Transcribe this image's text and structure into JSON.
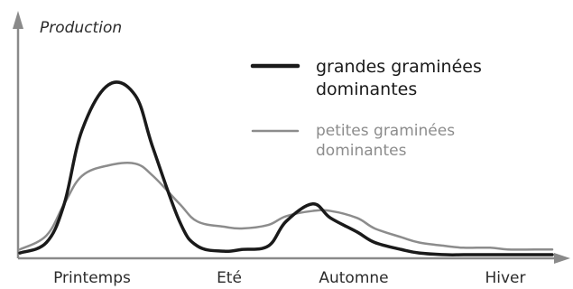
{
  "chart_data": {
    "type": "line",
    "ylabel": "Production",
    "xlabel": "",
    "categories": [
      "Printemps",
      "Eté",
      "Automne",
      "Hiver"
    ],
    "x": [
      0,
      0.6,
      1.0,
      1.4,
      2.0,
      2.6,
      3.0,
      3.6,
      4.0,
      4.6,
      5.0,
      5.6,
      6.0,
      6.6,
      7.0,
      7.6,
      8.0,
      8.6,
      9.0,
      9.6,
      10.0,
      10.6,
      11.0,
      11.6,
      12.0
    ],
    "xlim": [
      0,
      12
    ],
    "ylim": [
      0,
      100
    ],
    "series": [
      {
        "name": "grandes graminées dominantes",
        "color": "#1a1a1a",
        "values": [
          2,
          8,
          30,
          72,
          98,
          92,
          62,
          20,
          6,
          3,
          4,
          6,
          20,
          30,
          22,
          14,
          8,
          4,
          2,
          1,
          1,
          1,
          1,
          1,
          1
        ]
      },
      {
        "name": "petites graminées dominantes",
        "color": "#8c8c8c",
        "values": [
          4,
          12,
          30,
          46,
          52,
          53,
          46,
          30,
          20,
          17,
          16,
          18,
          23,
          26,
          26,
          22,
          16,
          11,
          8,
          6,
          5,
          5,
          4,
          4,
          4
        ]
      }
    ],
    "legend": {
      "position": "top-right",
      "entries": [
        {
          "line1": "grandes graminées",
          "line2": "dominantes",
          "color": "#1a1a1a"
        },
        {
          "line1": "petites graminées",
          "line2": "dominantes",
          "color": "#8c8c8c"
        }
      ]
    },
    "grid": false
  }
}
